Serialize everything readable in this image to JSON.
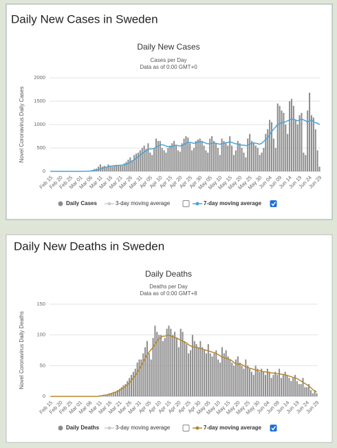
{
  "chart_data": [
    {
      "type": "bar",
      "page_title": "Daily New Cases in Sweden",
      "title": "Daily New Cases",
      "subtitle": "Cases per Day",
      "note": "Data as of 0:00 GMT+0",
      "ylabel": "Novel Coronavirus Daily Cases",
      "categories": [
        "Feb 15",
        null,
        null,
        null,
        null,
        "Feb 20",
        null,
        null,
        null,
        null,
        "Feb 25",
        null,
        null,
        null,
        null,
        "Mar 01",
        null,
        null,
        null,
        null,
        "Mar 06",
        null,
        null,
        null,
        null,
        "Mar 11",
        null,
        null,
        null,
        null,
        "Mar 16",
        null,
        null,
        null,
        null,
        "Mar 21",
        null,
        null,
        null,
        null,
        "Mar 26",
        null,
        null,
        null,
        null,
        "Mar 31",
        null,
        null,
        null,
        null,
        "Apr 05",
        null,
        null,
        null,
        null,
        "Apr 10",
        null,
        null,
        null,
        null,
        "Apr 15",
        null,
        null,
        null,
        null,
        "Apr 20",
        null,
        null,
        null,
        null,
        "Apr 25",
        null,
        null,
        null,
        null,
        "Apr 30",
        null,
        null,
        null,
        null,
        "May 05",
        null,
        null,
        null,
        null,
        "May 10",
        null,
        null,
        null,
        null,
        "May 15",
        null,
        null,
        null,
        null,
        "May 20",
        null,
        null,
        null,
        null,
        "May 25",
        null,
        null,
        null,
        null,
        "May 30",
        null,
        null,
        null,
        null,
        "Jun 04",
        null,
        null,
        null,
        null,
        "Jun 09",
        null,
        null,
        null,
        null,
        "Jun 14",
        null,
        null,
        null,
        null,
        "Jun 19",
        null,
        null,
        null,
        null,
        "Jun 24",
        null,
        null,
        null,
        null,
        "Jun 29"
      ],
      "series": [
        {
          "name": "Daily Cases",
          "type": "bar",
          "color": "#8c8c8c",
          "values": [
            0,
            0,
            0,
            0,
            0,
            0,
            0,
            0,
            0,
            0,
            0,
            0,
            0,
            0,
            0,
            0,
            1,
            2,
            5,
            10,
            15,
            30,
            50,
            60,
            100,
            150,
            100,
            120,
            80,
            150,
            120,
            100,
            120,
            140,
            130,
            140,
            120,
            170,
            200,
            250,
            300,
            240,
            350,
            380,
            400,
            450,
            500,
            550,
            480,
            600,
            400,
            350,
            480,
            700,
            650,
            650,
            500,
            450,
            400,
            500,
            550,
            600,
            650,
            550,
            450,
            420,
            600,
            700,
            750,
            720,
            600,
            450,
            500,
            650,
            680,
            700,
            650,
            550,
            450,
            400,
            700,
            750,
            650,
            600,
            500,
            350,
            700,
            650,
            600,
            550,
            750,
            550,
            350,
            450,
            650,
            600,
            500,
            400,
            300,
            700,
            800,
            650,
            600,
            550,
            500,
            350,
            400,
            500,
            800,
            900,
            1100,
            1050,
            700,
            500,
            1450,
            1400,
            1300,
            1250,
            1000,
            800,
            1500,
            1550,
            1400,
            1100,
            1000,
            1200,
            1250,
            400,
            350,
            1300,
            1680,
            1200,
            1150,
            900,
            450,
            100
          ]
        },
        {
          "name": "7-day moving average",
          "type": "line",
          "color": "#4aa3d8",
          "checked": true,
          "values": [
            0,
            0,
            0,
            0,
            0,
            0,
            0,
            0,
            0,
            0,
            0,
            0,
            0,
            0,
            0,
            0,
            1,
            2,
            3,
            5,
            8,
            12,
            18,
            25,
            35,
            50,
            65,
            80,
            90,
            100,
            110,
            115,
            120,
            125,
            125,
            130,
            135,
            140,
            150,
            170,
            190,
            220,
            250,
            280,
            310,
            350,
            380,
            410,
            440,
            470,
            480,
            480,
            490,
            520,
            540,
            560,
            570,
            560,
            540,
            530,
            520,
            530,
            550,
            560,
            550,
            540,
            550,
            570,
            600,
            620,
            620,
            610,
            600,
            610,
            620,
            640,
            630,
            620,
            600,
            590,
            590,
            600,
            610,
            600,
            590,
            580,
            590,
            600,
            610,
            620,
            630,
            620,
            600,
            590,
            580,
            570,
            560,
            560,
            550,
            560,
            580,
            600,
            610,
            600,
            590,
            580,
            600,
            640,
            680,
            720,
            780,
            850,
            900,
            950,
            1000,
            1020,
            1040,
            1050,
            1060,
            1080,
            1100,
            1120,
            1110,
            1100,
            1080,
            1100,
            1120,
            1100,
            1080,
            1050,
            1080,
            1100,
            1060,
            1040,
            1030,
            1000
          ]
        }
      ],
      "inactive_series": {
        "name": "3-day moving average",
        "color": "#cccccc",
        "checked": false
      },
      "ylim": [
        0,
        2000
      ],
      "yticks": [
        0,
        500,
        1000,
        1500,
        2000
      ],
      "grid": true
    },
    {
      "type": "bar",
      "page_title": "Daily New Deaths in Sweden",
      "title": "Daily Deaths",
      "subtitle": "Deaths per Day",
      "note": "Data as of 0:00 GMT+8",
      "ylabel": "Novel Coronavirus Daily Deaths",
      "categories": [
        "Feb 15",
        null,
        null,
        null,
        null,
        "Feb 20",
        null,
        null,
        null,
        null,
        "Feb 25",
        null,
        null,
        null,
        null,
        "Mar 01",
        null,
        null,
        null,
        null,
        "Mar 06",
        null,
        null,
        null,
        null,
        "Mar 11",
        null,
        null,
        null,
        null,
        "Mar 16",
        null,
        null,
        null,
        null,
        "Mar 21",
        null,
        null,
        null,
        null,
        "Mar 26",
        null,
        null,
        null,
        null,
        "Mar 31",
        null,
        null,
        null,
        null,
        "Apr 05",
        null,
        null,
        null,
        null,
        "Apr 10",
        null,
        null,
        null,
        null,
        "Apr 15",
        null,
        null,
        null,
        null,
        "Apr 20",
        null,
        null,
        null,
        null,
        "Apr 25",
        null,
        null,
        null,
        null,
        "Apr 30",
        null,
        null,
        null,
        null,
        "May 05",
        null,
        null,
        null,
        null,
        "May 10",
        null,
        null,
        null,
        null,
        "May 15",
        null,
        null,
        null,
        null,
        "May 20",
        null,
        null,
        null,
        null,
        "May 25",
        null,
        null,
        null,
        null,
        "May 30",
        null,
        null,
        null,
        null,
        "Jun 04",
        null,
        null,
        null,
        null,
        "Jun 09",
        null,
        null,
        null,
        null,
        "Jun 14",
        null,
        null,
        null,
        null,
        "Jun 19",
        null,
        null,
        null,
        null,
        "Jun 24",
        null,
        null,
        null,
        null,
        "Jun 29"
      ],
      "series": [
        {
          "name": "Daily Deaths",
          "type": "bar",
          "color": "#8c8c8c",
          "values": [
            0,
            0,
            0,
            0,
            0,
            0,
            0,
            0,
            0,
            0,
            0,
            0,
            0,
            0,
            0,
            0,
            0,
            0,
            0,
            0,
            0,
            0,
            0,
            0,
            0,
            1,
            1,
            1,
            2,
            3,
            5,
            5,
            7,
            8,
            10,
            12,
            15,
            18,
            20,
            25,
            30,
            35,
            40,
            45,
            55,
            60,
            60,
            70,
            80,
            90,
            70,
            60,
            95,
            115,
            105,
            100,
            100,
            90,
            95,
            110,
            115,
            110,
            100,
            105,
            95,
            80,
            110,
            105,
            90,
            85,
            70,
            75,
            100,
            90,
            85,
            80,
            90,
            80,
            75,
            70,
            85,
            70,
            65,
            70,
            75,
            60,
            55,
            80,
            70,
            75,
            65,
            60,
            55,
            50,
            60,
            65,
            55,
            50,
            45,
            60,
            50,
            45,
            40,
            35,
            50,
            45,
            40,
            45,
            40,
            35,
            45,
            40,
            30,
            35,
            40,
            35,
            45,
            30,
            35,
            40,
            35,
            30,
            25,
            30,
            35,
            25,
            20,
            20,
            30,
            15,
            15,
            20,
            10,
            5,
            10,
            5
          ]
        },
        {
          "name": "7-day moving average",
          "type": "line",
          "color": "#b8862b",
          "checked": true,
          "values": [
            0,
            0,
            0,
            0,
            0,
            0,
            0,
            0,
            0,
            0,
            0,
            0,
            0,
            0,
            0,
            0,
            0,
            0,
            0,
            0,
            0,
            0,
            0,
            0,
            0,
            1,
            1,
            2,
            2,
            3,
            4,
            5,
            6,
            7,
            8,
            10,
            12,
            14,
            16,
            19,
            22,
            26,
            30,
            34,
            39,
            44,
            50,
            56,
            62,
            68,
            72,
            76,
            80,
            85,
            90,
            94,
            96,
            98,
            98,
            99,
            100,
            98,
            97,
            96,
            95,
            93,
            92,
            90,
            88,
            87,
            84,
            82,
            81,
            80,
            80,
            79,
            78,
            77,
            76,
            75,
            74,
            73,
            72,
            71,
            70,
            68,
            66,
            64,
            63,
            62,
            61,
            60,
            58,
            55,
            53,
            52,
            53,
            52,
            50,
            48,
            47,
            46,
            45,
            44,
            43,
            42,
            42,
            41,
            40,
            40,
            39,
            39,
            38,
            38,
            37,
            37,
            37,
            36,
            36,
            35,
            34,
            33,
            32,
            31,
            30,
            29,
            27,
            25,
            23,
            21,
            19,
            17,
            14,
            11,
            9,
            7
          ]
        }
      ],
      "inactive_series": {
        "name": "3-day moving average",
        "color": "#cccccc",
        "checked": false
      },
      "ylim": [
        0,
        150
      ],
      "yticks": [
        0,
        50,
        100,
        150
      ],
      "grid": true
    }
  ]
}
